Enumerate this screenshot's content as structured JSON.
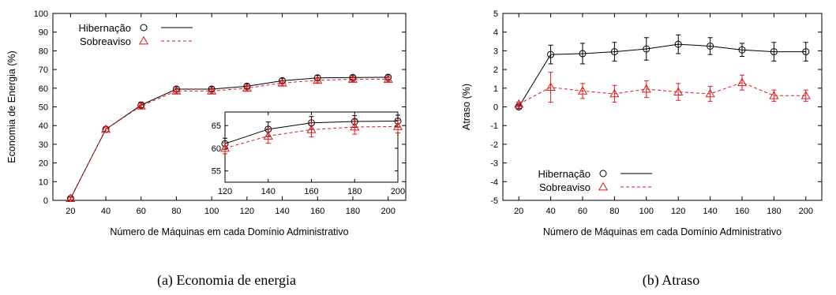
{
  "chart_data": [
    {
      "type": "line",
      "caption": "(a)  Economia de energia",
      "xlabel": "Número de Máquinas em cada Domínio Administrativo",
      "ylabel": "Economia de Energia (%)",
      "x": [
        20,
        40,
        60,
        80,
        100,
        120,
        140,
        160,
        180,
        200
      ],
      "ylim": [
        0,
        100
      ],
      "yticks": [
        0,
        10,
        20,
        30,
        40,
        50,
        60,
        70,
        80,
        90,
        100
      ],
      "xticks": [
        20,
        40,
        60,
        80,
        100,
        120,
        140,
        160,
        180,
        200
      ],
      "legend_position": "top-left",
      "series": [
        {
          "name": "Hibernação",
          "marker": "circle",
          "color": "#000000",
          "dash": "solid",
          "values": [
            1,
            38,
            51,
            59.5,
            59.5,
            61,
            64,
            65.5,
            65.7,
            65.8
          ],
          "errors": [
            0.8,
            1.5,
            1.5,
            1.3,
            1.3,
            1.3,
            1.3,
            1.3,
            1.3,
            1.3
          ]
        },
        {
          "name": "Sobreaviso",
          "marker": "triangle",
          "color": "#e0191f",
          "dash": "dashed",
          "values": [
            1,
            38,
            50.5,
            58.5,
            58.5,
            60,
            62.8,
            64.2,
            64.8,
            64.8
          ],
          "errors": [
            0.8,
            1.5,
            1.5,
            1.3,
            1.3,
            1.3,
            1.3,
            1.3,
            1.3,
            1.3
          ]
        }
      ],
      "inset": {
        "xlim": [
          120,
          200
        ],
        "ylim": [
          52.5,
          68
        ],
        "xticks": [
          120,
          140,
          160,
          180,
          200
        ],
        "yticks": [
          55,
          60,
          65
        ],
        "x": [
          120,
          140,
          160,
          180,
          200
        ],
        "series": [
          {
            "values": [
              61,
              64.2,
              65.6,
              65.9,
              66
            ],
            "errors": [
              1.2,
              1.6,
              1.4,
              1.3,
              1.3
            ]
          },
          {
            "values": [
              60,
              62.7,
              64.1,
              64.7,
              64.8
            ],
            "errors": [
              1.2,
              1.6,
              1.6,
              1.6,
              1.4
            ]
          }
        ]
      }
    },
    {
      "type": "line",
      "caption": "(b)  Atraso",
      "xlabel": "Número de Máquinas em cada Domínio Administrativo",
      "ylabel": "Atraso (%)",
      "x": [
        20,
        40,
        60,
        80,
        100,
        120,
        140,
        160,
        180,
        200
      ],
      "ylim": [
        -5,
        5
      ],
      "yticks": [
        -5,
        -4,
        -3,
        -2,
        -1,
        0,
        1,
        2,
        3,
        4,
        5
      ],
      "xticks": [
        20,
        40,
        60,
        80,
        100,
        120,
        140,
        160,
        180,
        200
      ],
      "legend_position": "bottom-left",
      "series": [
        {
          "name": "Hibernação",
          "marker": "circle",
          "color": "#000000",
          "dash": "solid",
          "values": [
            0,
            2.8,
            2.85,
            2.95,
            3.1,
            3.35,
            3.25,
            3.05,
            2.95,
            2.95
          ],
          "errors": [
            0.1,
            0.5,
            0.55,
            0.5,
            0.6,
            0.5,
            0.45,
            0.35,
            0.5,
            0.5
          ]
        },
        {
          "name": "Sobreaviso",
          "marker": "triangle",
          "color": "#e0191f",
          "dash": "dashed",
          "values": [
            0.15,
            1.05,
            0.85,
            0.7,
            0.95,
            0.8,
            0.7,
            1.3,
            0.6,
            0.6
          ],
          "errors": [
            0.1,
            0.8,
            0.4,
            0.45,
            0.45,
            0.45,
            0.4,
            0.4,
            0.3,
            0.3
          ]
        }
      ]
    }
  ]
}
